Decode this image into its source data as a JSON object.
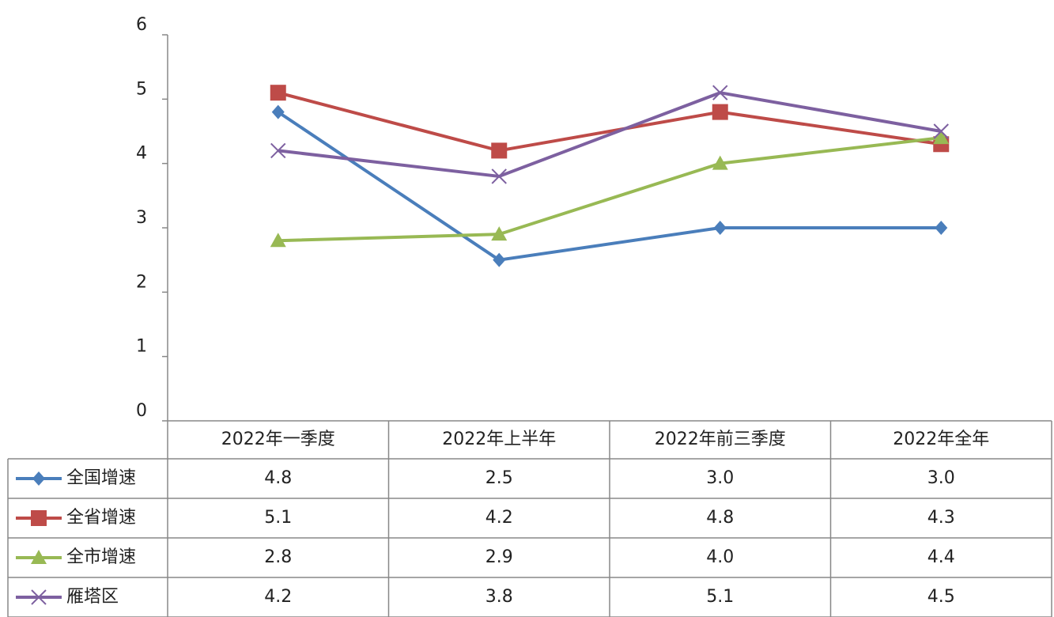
{
  "chart_data": {
    "type": "line",
    "categories": [
      "2022年一季度",
      "2022年上半年",
      "2022年前三季度",
      "2022年全年"
    ],
    "series": [
      {
        "name": "全国增速",
        "color": "#4a7ebb",
        "marker": "diamond",
        "values": [
          4.8,
          2.5,
          3,
          3
        ],
        "value_labels": [
          "4.8",
          "2.5",
          "3.0",
          "3.0"
        ]
      },
      {
        "name": "全省增速",
        "color": "#be4b48",
        "marker": "square",
        "values": [
          5.1,
          4.2,
          4.8,
          4.3
        ],
        "value_labels": [
          "5.1",
          "4.2",
          "4.8",
          "4.3"
        ]
      },
      {
        "name": "全市增速",
        "color": "#98b954",
        "marker": "triangle",
        "values": [
          2.8,
          2.9,
          4,
          4.4
        ],
        "value_labels": [
          "2.8",
          "2.9",
          "4.0",
          "4.4"
        ]
      },
      {
        "name": "雁塔区",
        "color": "#7d60a0",
        "marker": "x",
        "values": [
          4.2,
          3.8,
          5.1,
          4.5
        ],
        "value_labels": [
          "4.2",
          "3.8",
          "5.1",
          "4.5"
        ]
      }
    ],
    "ylim": [
      0,
      6
    ],
    "yticks": [
      0,
      1,
      2,
      3,
      4,
      5,
      6
    ],
    "grid": false
  }
}
